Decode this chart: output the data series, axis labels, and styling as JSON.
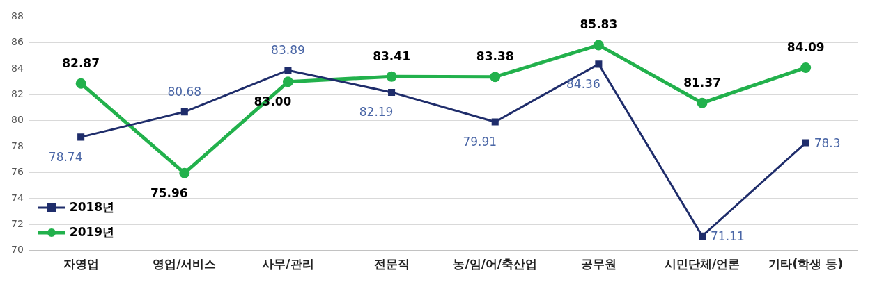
{
  "chart_data": {
    "type": "line",
    "categories": [
      "자영업",
      "영업/서비스",
      "사무/관리",
      "전문직",
      "농/임/어/축산업",
      "공무원",
      "시민단체/언론",
      "기타(학생 등)"
    ],
    "series": [
      {
        "name": "2018년",
        "color": "#1f2d6b",
        "marker": "square",
        "values": [
          78.74,
          80.68,
          83.89,
          82.19,
          79.91,
          84.36,
          71.11,
          78.3
        ],
        "value_labels": [
          "78.74",
          "80.68",
          "83.89",
          "82.19",
          "79.91",
          "84.36",
          "71.11",
          "78.3"
        ]
      },
      {
        "name": "2019년",
        "color": "#22b14c",
        "marker": "circle",
        "values": [
          82.87,
          75.96,
          83.0,
          83.41,
          83.38,
          85.83,
          81.37,
          84.09
        ],
        "value_labels": [
          "82.87",
          "75.96",
          "83.00",
          "83.41",
          "83.38",
          "85.83",
          "81.37",
          "84.09"
        ]
      }
    ],
    "ylim": [
      70,
      88
    ],
    "yticks": [
      70,
      72,
      74,
      76,
      78,
      80,
      82,
      84,
      86,
      88
    ],
    "grid": "y",
    "legend": "bottom left"
  }
}
